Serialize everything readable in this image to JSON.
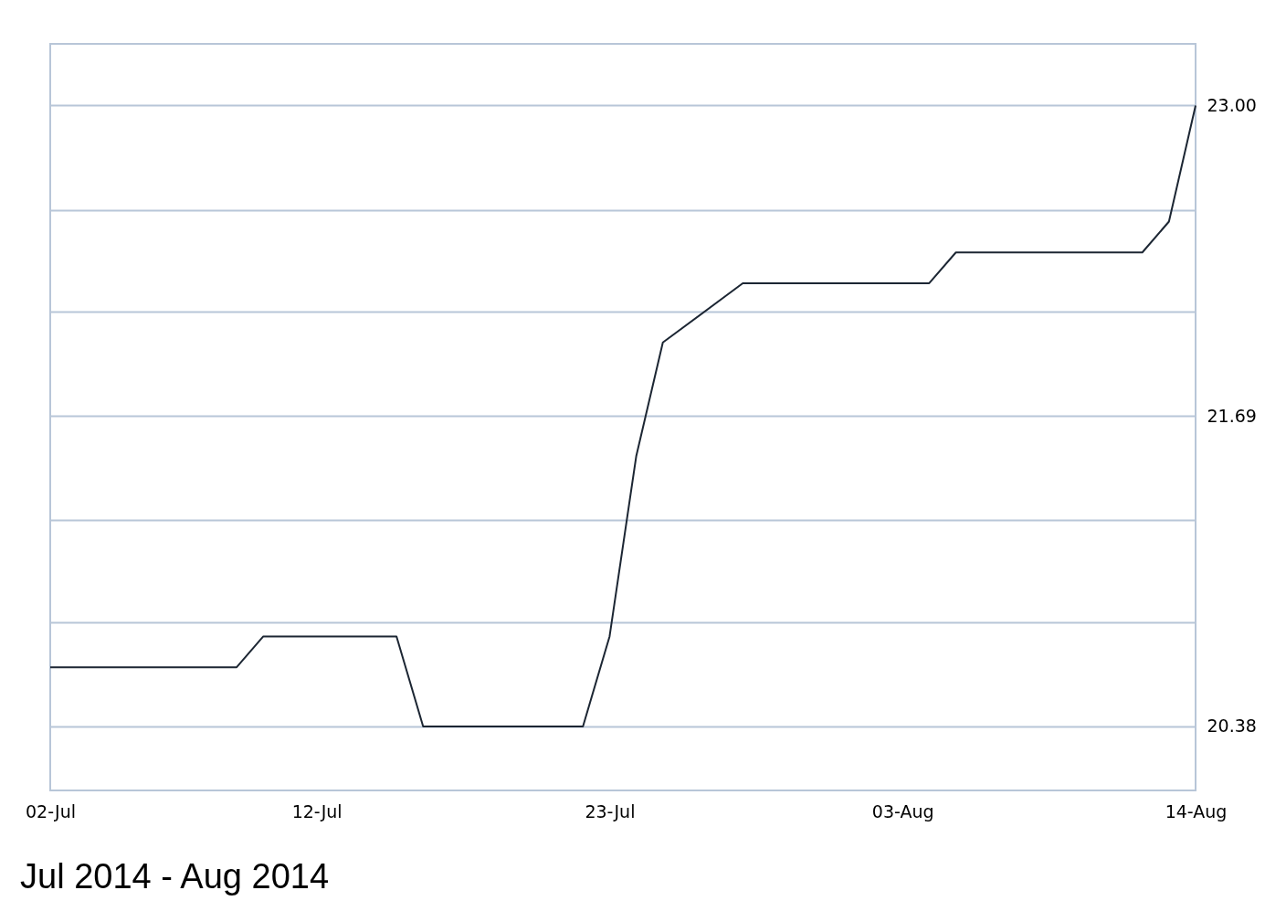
{
  "chart_data": {
    "type": "line",
    "x": [
      "2014-07-02",
      "2014-07-09",
      "2014-07-10",
      "2014-07-15",
      "2014-07-16",
      "2014-07-22",
      "2014-07-23",
      "2014-07-24",
      "2014-07-25",
      "2014-07-28",
      "2014-08-04",
      "2014-08-05",
      "2014-08-12",
      "2014-08-13",
      "2014-08-14"
    ],
    "series": [
      {
        "color": "#1c2633",
        "values": [
          20.63,
          20.63,
          20.76,
          20.76,
          20.38,
          20.38,
          20.76,
          21.52,
          22.0,
          22.25,
          22.25,
          22.38,
          22.38,
          22.51,
          23.0
        ]
      }
    ],
    "xlim": [
      "2014-07-02",
      "2014-08-14"
    ],
    "xticks": [
      {
        "value": "2014-07-02",
        "label": "02-Jul"
      },
      {
        "value": "2014-07-12",
        "label": "12-Jul"
      },
      {
        "value": "2014-07-23",
        "label": "23-Jul"
      },
      {
        "value": "2014-08-03",
        "label": "03-Aug"
      },
      {
        "value": "2014-08-14",
        "label": "14-Aug"
      }
    ],
    "ylim": [
      20.11,
      23.26
    ],
    "yticks": [
      {
        "value": 20.38,
        "label": "20.38"
      },
      {
        "value": 20.82,
        "label": null
      },
      {
        "value": 21.25,
        "label": null
      },
      {
        "value": 21.69,
        "label": "21.69"
      },
      {
        "value": 22.13,
        "label": null
      },
      {
        "value": 22.56,
        "label": null
      },
      {
        "value": 23.0,
        "label": "23.00"
      }
    ],
    "grid": "y",
    "marker": "none",
    "line_style": "solid",
    "annotations": [
      "Jul 2014 - Aug 2014"
    ]
  }
}
